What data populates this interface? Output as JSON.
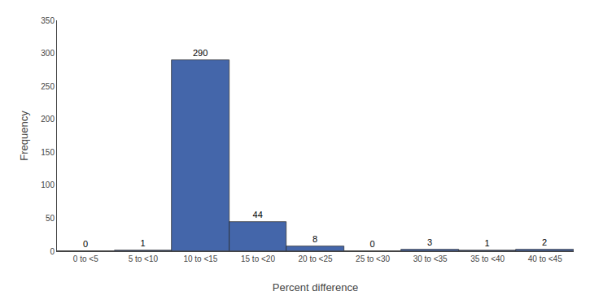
{
  "chart_data": {
    "type": "bar",
    "categories": [
      "0 to <5",
      "5 to <10",
      "10 to <15",
      "15 to <20",
      "20 to <25",
      "25 to <30",
      "30 to <35",
      "35 to <40",
      "40 to <45"
    ],
    "values": [
      0,
      1,
      290,
      44,
      8,
      0,
      3,
      1,
      2
    ],
    "color": "#4466aa",
    "xlabel": "Percent difference",
    "ylabel": "Frequency",
    "ylim": [
      0,
      350
    ],
    "yticks": [
      0,
      50,
      100,
      150,
      200,
      250,
      300,
      350
    ],
    "data_labels": true,
    "grid": false
  }
}
